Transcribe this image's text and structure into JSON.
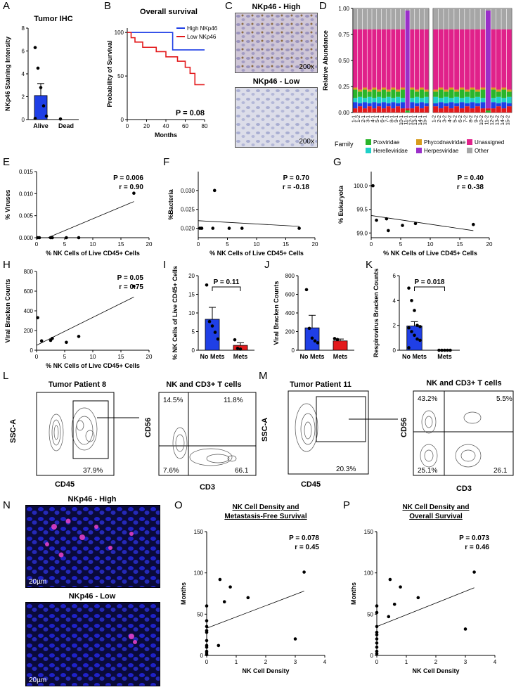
{
  "panel_letters": {
    "A": "A",
    "B": "B",
    "C": "C",
    "D": "D",
    "E": "E",
    "F": "F",
    "G": "G",
    "H": "H",
    "I": "I",
    "J": "J",
    "K": "K",
    "L": "L",
    "M": "M",
    "N": "N",
    "O": "O",
    "P": "P"
  },
  "C": {
    "high_title": "NKp46 - High",
    "low_title": "NKp46 - Low",
    "magnification": "200x"
  },
  "N": {
    "high_title": "NKp46 - High",
    "low_title": "NKp46 - Low",
    "scale_bar": "20µm"
  },
  "L": {
    "left_title": "Tumor Patient 8",
    "right_title": "NK and CD3+ T cells",
    "gate_pct": "37.9%",
    "q_ul": "14.5%",
    "q_ur": "11.8%",
    "q_ll": "7.6%",
    "q_lr": "66.1",
    "x_left": "CD45",
    "y_left": "SSC-A",
    "x_right": "CD3",
    "y_right": "CD56"
  },
  "M": {
    "left_title": "Tumor Patient 11",
    "right_title": "NK and CD3+ T cells",
    "gate_pct": "20.3%",
    "q_ul": "43.2%",
    "q_ur": "5.5%",
    "q_ll": "25.1%",
    "q_lr": "26.1",
    "x_left": "CD45",
    "y_left": "SSC-A",
    "x_right": "CD3",
    "y_right": "CD56"
  },
  "chart_data": [
    {
      "id": "A",
      "type": "bar",
      "title": "Tumor IHC",
      "categories": [
        "Alive",
        "Dead"
      ],
      "values": [
        2.1,
        0.0
      ],
      "errors": [
        1.05,
        0
      ],
      "points": [
        [
          6.3,
          4.5,
          2.8,
          1.2,
          0.3,
          0.1
        ],
        [
          0.05
        ]
      ],
      "ylabel": "NKp46 Staining Intensity",
      "ylim": [
        0,
        8
      ],
      "yticks": [
        0,
        2,
        4,
        6,
        8
      ],
      "bar_colors": [
        "#1f3fe6",
        "#1f3fe6"
      ]
    },
    {
      "id": "B",
      "type": "line",
      "title": "Overall survival",
      "xlabel": "Months",
      "ylabel": "Probability of Survival",
      "xlim": [
        0,
        80
      ],
      "ylim": [
        0,
        105
      ],
      "xticks": [
        0,
        20,
        40,
        60,
        80
      ],
      "yticks": [
        0,
        50,
        100
      ],
      "legend": [
        "High NKp46",
        "Low NKp46"
      ],
      "annotation": "P = 0.08",
      "series": [
        {
          "name": "High NKp46",
          "color": "#1f3fe6",
          "steps": [
            [
              0,
              100
            ],
            [
              47,
              100
            ],
            [
              47,
              80
            ],
            [
              80,
              80
            ]
          ]
        },
        {
          "name": "Low NKp46",
          "color": "#e31a1c",
          "steps": [
            [
              0,
              100
            ],
            [
              4,
              100
            ],
            [
              4,
              94
            ],
            [
              8,
              94
            ],
            [
              8,
              89
            ],
            [
              16,
              89
            ],
            [
              16,
              83
            ],
            [
              30,
              83
            ],
            [
              30,
              78
            ],
            [
              40,
              78
            ],
            [
              40,
              72
            ],
            [
              52,
              72
            ],
            [
              52,
              67
            ],
            [
              60,
              67
            ],
            [
              60,
              60
            ],
            [
              65,
              60
            ],
            [
              65,
              53
            ],
            [
              70,
              53
            ],
            [
              70,
              40
            ],
            [
              80,
              40
            ]
          ]
        }
      ]
    },
    {
      "id": "D",
      "type": "bar",
      "ylabel": "Relative Abundance",
      "ylim": [
        0,
        1
      ],
      "yticks": [
        "0.00",
        "0.25",
        "0.50",
        "0.75",
        "1.00"
      ],
      "stacked": true,
      "categories_left": [
        "1-1",
        "1-2",
        "2-1",
        "3-1",
        "4-1",
        "5-1",
        "6-1",
        "7-1",
        "8-1",
        "9-1",
        "10-1",
        "11-1",
        "12-1",
        "13-1",
        "14-1",
        "15-1"
      ],
      "categories_right": [
        "1-2",
        "2-2",
        "3-2",
        "4-2",
        "5-2",
        "6-2",
        "7-2",
        "8-2",
        "9-2",
        "10-2",
        "11-2",
        "12-2",
        "13-2",
        "14-2",
        "15-2"
      ],
      "legend_title": "Family",
      "legend": [
        {
          "name": "Poxviridae",
          "color": "#2ab52a"
        },
        {
          "name": "Phycodnaviridae",
          "color": "#d89b1c"
        },
        {
          "name": "Unassigned",
          "color": "#e0218a"
        },
        {
          "name": "Herelleviridae",
          "color": "#1fd0c8"
        },
        {
          "name": "Herpesviridae",
          "color": "#9a2fc9"
        },
        {
          "name": "Other",
          "color": "#a6a6a6"
        }
      ]
    },
    {
      "id": "E",
      "type": "scatter",
      "ylabel": "% Viruses",
      "xlabel": "% NK Cells of Live CD45+ Cells",
      "xlim": [
        0,
        20
      ],
      "ylim": [
        0,
        0.015
      ],
      "xticks": [
        0,
        5,
        10,
        15,
        20
      ],
      "yticks": [
        "0.000",
        "0.005",
        "0.010",
        "0.015"
      ],
      "points": [
        [
          0.2,
          0
        ],
        [
          0.5,
          0
        ],
        [
          2.5,
          0
        ],
        [
          2.8,
          0
        ],
        [
          5.3,
          0
        ],
        [
          7.5,
          0
        ],
        [
          17.3,
          0.0101
        ]
      ],
      "fit": [
        [
          2,
          0
        ],
        [
          17.3,
          0.0082
        ]
      ],
      "annotation_p": "P = 0.006",
      "annotation_r": "r = 0.90"
    },
    {
      "id": "F",
      "type": "scatter",
      "ylabel": "%Bacteria",
      "xlabel": "% NK Cells of Live CD45+ Cells",
      "xlim": [
        0,
        20
      ],
      "ylim": [
        0.0175,
        0.035
      ],
      "xticks": [
        0,
        5,
        10,
        15,
        20
      ],
      "yticks": [
        "0.020",
        "0.025",
        "0.030"
      ],
      "points": [
        [
          0.3,
          0.02
        ],
        [
          0.6,
          0.02
        ],
        [
          2.5,
          0.02
        ],
        [
          2.8,
          0.03
        ],
        [
          5.3,
          0.02
        ],
        [
          7.5,
          0.02
        ],
        [
          17.3,
          0.02
        ]
      ],
      "fit": [
        [
          0,
          0.022
        ],
        [
          17.3,
          0.0205
        ]
      ],
      "annotation_p": "P = 0.70",
      "annotation_r": "r = -0.18"
    },
    {
      "id": "G",
      "type": "scatter",
      "ylabel": "% Eukaryota",
      "xlabel": "% NK Cells of Live CD45+ Cells",
      "xlim": [
        0,
        20
      ],
      "ylim": [
        98.9,
        100.3
      ],
      "xticks": [
        0,
        5,
        10,
        15,
        20
      ],
      "yticks": [
        "99.0",
        "99.5",
        "100.0"
      ],
      "points": [
        [
          0.3,
          100.0
        ],
        [
          0.9,
          99.27
        ],
        [
          2.6,
          99.3
        ],
        [
          2.9,
          99.05
        ],
        [
          5.3,
          99.16
        ],
        [
          7.5,
          99.2
        ],
        [
          17.3,
          99.18
        ]
      ],
      "fit": [
        [
          0,
          99.37
        ],
        [
          17.3,
          99.05
        ]
      ],
      "annotation_p": "P = 0.40",
      "annotation_r": "r = 0.-38"
    },
    {
      "id": "H",
      "type": "scatter",
      "ylabel": "Viral Bracken Counts",
      "xlabel": "% NK Cells of Live CD45+ Cells",
      "xlim": [
        0,
        20
      ],
      "ylim": [
        0,
        800
      ],
      "xticks": [
        0,
        5,
        10,
        15,
        20
      ],
      "yticks": [
        0,
        200,
        400,
        600,
        800
      ],
      "points": [
        [
          0.2,
          330
        ],
        [
          0.9,
          95
        ],
        [
          2.5,
          100
        ],
        [
          2.8,
          120
        ],
        [
          5.3,
          80
        ],
        [
          7.5,
          140
        ],
        [
          17.3,
          650
        ]
      ],
      "fit": [
        [
          0,
          50
        ],
        [
          17.3,
          540
        ]
      ],
      "annotation_p": "P = 0.05",
      "annotation_r": "r = 0.75"
    },
    {
      "id": "I",
      "type": "bar",
      "ylabel": "% NK Cells of Live CD45+ Cells",
      "categories": [
        "No Mets",
        "Mets"
      ],
      "values": [
        8.3,
        1.3
      ],
      "errors": [
        3.2,
        0.7
      ],
      "bar_colors": [
        "#1f3fe6",
        "#e31a1c"
      ],
      "points": [
        [
          17.5,
          7.7,
          6.5,
          4.8,
          3.0
        ],
        [
          2.8,
          0.5,
          0.3
        ]
      ],
      "ylim": [
        0,
        20
      ],
      "yticks": [
        0,
        5,
        10,
        15,
        20
      ],
      "annotation": "P = 0.11"
    },
    {
      "id": "J",
      "type": "bar",
      "ylabel": "Viral Bracken Counts",
      "categories": [
        "No Mets",
        "Mets"
      ],
      "values": [
        240,
        100
      ],
      "errors": [
        135,
        20
      ],
      "bar_colors": [
        "#1f3fe6",
        "#e31a1c"
      ],
      "points": [
        [
          650,
          235,
          130,
          100,
          80
        ],
        [
          125,
          115
        ]
      ],
      "ylim": [
        0,
        800
      ],
      "yticks": [
        0,
        200,
        400,
        600,
        800
      ]
    },
    {
      "id": "K",
      "type": "bar",
      "ylabel": "Respirovirus Bracken Counts",
      "categories": [
        "No Mets",
        "Mets"
      ],
      "values": [
        1.95,
        0
      ],
      "errors": [
        0.35,
        0
      ],
      "bar_colors": [
        "#1f3fe6",
        "#e31a1c"
      ],
      "points": [
        [
          5.0,
          4.0,
          3.2,
          2.0,
          1.9,
          1.8,
          1.5,
          1.2,
          0.9,
          0.8,
          0.2
        ],
        [
          0,
          0,
          0,
          0,
          0
        ]
      ],
      "ylim": [
        0,
        6
      ],
      "yticks": [
        0,
        2,
        4,
        6
      ],
      "annotation": "P = 0.018"
    },
    {
      "id": "O",
      "type": "scatter",
      "title": "NK Cell Density and Metastasis-Free Survival",
      "xlabel": "NK Cell Density",
      "ylabel": "Months",
      "xlim": [
        0,
        4
      ],
      "ylim": [
        0,
        150
      ],
      "xticks": [
        0,
        1,
        2,
        3,
        4
      ],
      "yticks": [
        0,
        50,
        100,
        150
      ],
      "points": [
        [
          0,
          60
        ],
        [
          0,
          42
        ],
        [
          0,
          35
        ],
        [
          0,
          30
        ],
        [
          0,
          28
        ],
        [
          0,
          18
        ],
        [
          0,
          12
        ],
        [
          0,
          10
        ],
        [
          0,
          5
        ],
        [
          0,
          3
        ],
        [
          0,
          1
        ],
        [
          0.4,
          12
        ],
        [
          0.45,
          92
        ],
        [
          0.6,
          65
        ],
        [
          0.8,
          83
        ],
        [
          1.4,
          70
        ],
        [
          3.0,
          20
        ],
        [
          3.3,
          101
        ]
      ],
      "fit": [
        [
          0,
          33
        ],
        [
          3.3,
          78
        ]
      ],
      "annotation_p": "P = 0.078",
      "annotation_r": "r = 0.45"
    },
    {
      "id": "P",
      "type": "scatter",
      "title": "NK Cell Density and Overall Survival",
      "xlabel": "NK Cell Density",
      "ylabel": "Months",
      "xlim": [
        0,
        4
      ],
      "ylim": [
        0,
        150
      ],
      "xticks": [
        0,
        1,
        2,
        3,
        4
      ],
      "yticks": [
        0,
        50,
        100,
        150
      ],
      "points": [
        [
          0,
          60
        ],
        [
          0,
          52
        ],
        [
          0,
          35
        ],
        [
          0,
          28
        ],
        [
          0,
          25
        ],
        [
          0,
          20
        ],
        [
          0,
          15
        ],
        [
          0,
          10
        ],
        [
          0,
          5
        ],
        [
          0,
          2
        ],
        [
          0.4,
          47
        ],
        [
          0.45,
          92
        ],
        [
          0.6,
          62
        ],
        [
          0.8,
          83
        ],
        [
          1.4,
          70
        ],
        [
          3.0,
          32
        ],
        [
          3.3,
          101
        ]
      ],
      "fit": [
        [
          0,
          35
        ],
        [
          3.3,
          82
        ]
      ],
      "annotation_p": "P = 0.073",
      "annotation_r": "r = 0.46"
    }
  ]
}
